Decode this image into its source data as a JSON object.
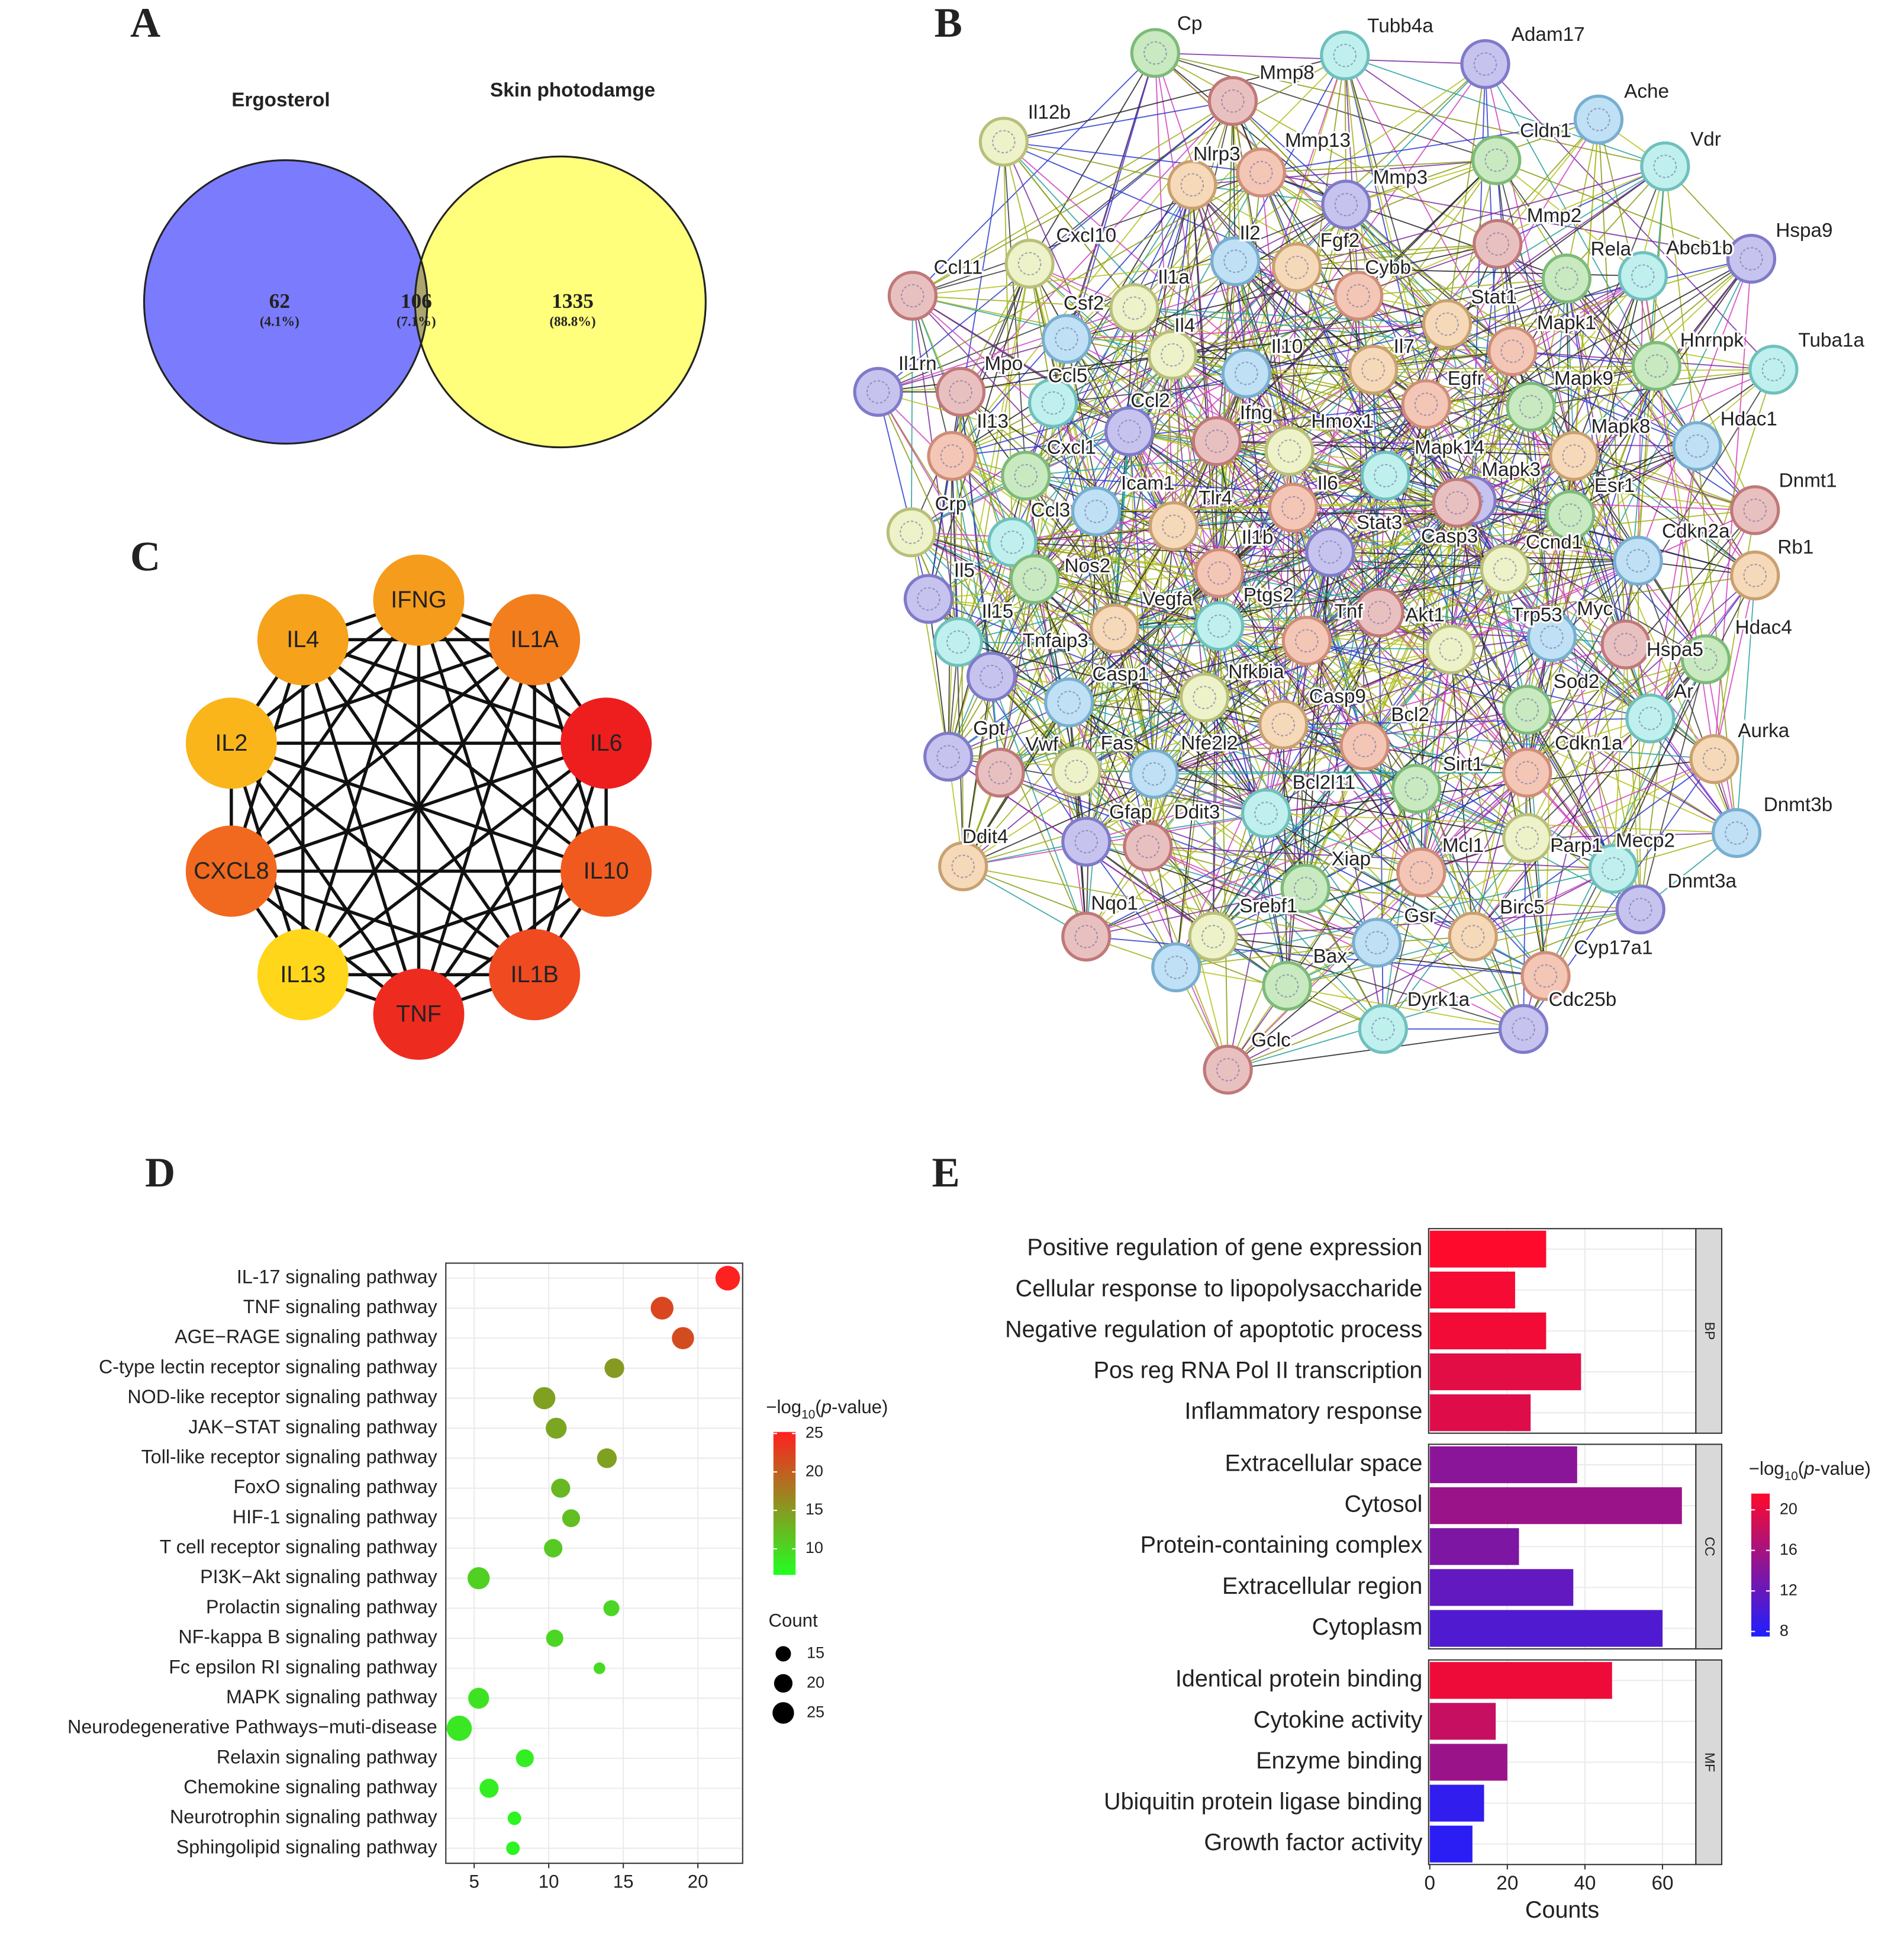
{
  "chart_data": [
    {
      "type": "venn",
      "panel": "A",
      "sets": [
        {
          "name": "Ergosterol",
          "color": "#7b7bfe",
          "label_color": "#2a2ae0"
        },
        {
          "name": "Skin photodamge",
          "color": "#ffff7c",
          "label_color": "#c4c40a"
        }
      ],
      "overlap_color": "#aba66e",
      "values": [
        62,
        106,
        1335
      ],
      "percent_labels": [
        "(4.1%)",
        "(7.1%)",
        "(88.8%)"
      ]
    },
    {
      "type": "network",
      "panel": "B",
      "nodes": [
        "Cp",
        "Tubb4a",
        "Adam17",
        "Mmp8",
        "Il12b",
        "Ache",
        "Nlrp3",
        "Mmp13",
        "Cldn1",
        "Vdr",
        "Mmp3",
        "Mmp2",
        "Cxcl10",
        "Il2",
        "Fgf2",
        "Cybb",
        "Rela",
        "Abcb1b",
        "Hspa9",
        "Ccl11",
        "Il1a",
        "Csf2",
        "Stat1",
        "Mapk1",
        "Hnrnpk",
        "Tuba1a",
        "Il1rn",
        "Mpo",
        "Il4",
        "Il10",
        "Il7",
        "Egfr",
        "Mapk9",
        "Ccl5",
        "Ccl2",
        "Ifng",
        "Hmox1",
        "Hdac1",
        "Mapk8",
        "Il13",
        "Cxcl1",
        "Mapk14",
        "Mapk3",
        "Dnmt1",
        "Crp",
        "Icam1",
        "Tlr4",
        "Il6",
        "Esr1",
        "Ccl3",
        "Stat3",
        "Casp3",
        "Ccnd1",
        "Cdkn2a",
        "Rb1",
        "Il1b",
        "Nos2",
        "Ptgs2",
        "Il5",
        "Akt1",
        "Trp53",
        "Myc",
        "Vegfa",
        "Tnf",
        "Hdac4",
        "Il15",
        "Tnfaip3",
        "Hspa5",
        "Nfkbia",
        "Casp1",
        "Casp9",
        "Bcl2",
        "Sod2",
        "Ar",
        "Gpt",
        "Vwf",
        "Fas",
        "Nfe2l2",
        "Aurka",
        "Cdkn1a",
        "Sirt1",
        "Bcl2l11",
        "Gfap",
        "Ddit3",
        "Parp1",
        "Dnmt3b",
        "Ddit4",
        "Mcl1",
        "Xiap",
        "Mecp2",
        "Dnmt3a",
        "Nqo1",
        "Srebf1",
        "Gsr",
        "Birc5",
        "Cyp17a1",
        "Bax",
        "Dyrk1a",
        "Cdc25b",
        "Gclc"
      ]
    },
    {
      "type": "network",
      "panel": "C",
      "nodes": [
        {
          "label": "IFNG",
          "color": "#f59c1c"
        },
        {
          "label": "IL1A",
          "color": "#f27e1d"
        },
        {
          "label": "IL6",
          "color": "#ee1e1e"
        },
        {
          "label": "IL10",
          "color": "#f05a1f"
        },
        {
          "label": "IL1B",
          "color": "#f04a21"
        },
        {
          "label": "TNF",
          "color": "#ee2b1f"
        },
        {
          "label": "IL13",
          "color": "#ffd61a"
        },
        {
          "label": "CXCL8",
          "color": "#f0691e"
        },
        {
          "label": "IL2",
          "color": "#f9b51a"
        },
        {
          "label": "IL4",
          "color": "#f6a21a"
        }
      ]
    },
    {
      "type": "dot",
      "panel": "D",
      "categories": [
        "IL-17 signaling pathway",
        "TNF signaling pathway",
        "AGE−RAGE signaling pathway",
        "C-type lectin receptor signaling pathway",
        "NOD-like receptor signaling pathway",
        "JAK−STAT signaling pathway",
        "Toll-like receptor signaling pathway",
        "FoxO signaling pathway",
        "HIF-1 signaling pathway",
        "T cell receptor signaling pathway",
        "PI3K−Akt signaling pathway",
        "Prolactin signaling pathway",
        "NF-kappa B signaling pathway",
        "Fc epsilon RI signaling pathway",
        "MAPK signaling pathway",
        "Neurodegenerative Pathways−muti-disease",
        "Relaxin signaling pathway",
        "Chemokine signaling pathway",
        "Neurotrophin signaling pathway",
        "Sphingolipid signaling pathway"
      ],
      "values": [
        22.0,
        17.6,
        19.0,
        14.4,
        9.7,
        10.5,
        13.9,
        10.8,
        11.5,
        10.3,
        5.3,
        14.2,
        10.4,
        13.4,
        5.3,
        4.0,
        8.4,
        6.0,
        7.7,
        7.6
      ],
      "counts": [
        30,
        27,
        26,
        22,
        26,
        24,
        22,
        21,
        19,
        20,
        26,
        16,
        18,
        9,
        24,
        31,
        19,
        21,
        12,
        12
      ],
      "neglog_p": [
        25,
        22,
        21.5,
        15,
        14.5,
        14,
        14.5,
        12.5,
        12,
        11,
        10.5,
        10,
        10,
        9.5,
        9,
        8.5,
        8,
        8,
        7.5,
        7.5
      ],
      "xlim": [
        3.1,
        23.0
      ],
      "xticks": [
        5,
        10,
        15,
        20
      ],
      "grid": true,
      "color_title": [
        "−log",
        "10",
        "(",
        "p",
        "-value)"
      ],
      "color_range": [
        "#22ff22",
        "#ff2020"
      ],
      "clim": [
        6.6,
        25.2
      ],
      "cticks": [
        10,
        15,
        20,
        25
      ],
      "size_title": "Count",
      "size_legend": [
        15,
        20,
        25
      ]
    },
    {
      "type": "bar",
      "panel": "E",
      "facets": [
        {
          "name": "BP",
          "categories": [
            "Positive regulation of gene expression",
            "Cellular response to lipopolysaccharide",
            "Negative regulation of apoptotic process",
            "Pos reg RNA Pol II transcription",
            "Inflammatory response"
          ],
          "values": [
            30,
            22,
            30,
            39,
            26
          ],
          "neglog_p": [
            21.5,
            21,
            20.8,
            19.8,
            19.5
          ]
        },
        {
          "name": "CC",
          "categories": [
            "Extracellular space",
            "Cytosol",
            "Protein-containing complex",
            "Extracellular region",
            "Cytoplasm"
          ],
          "values": [
            38,
            65,
            23,
            37,
            60
          ],
          "neglog_p": [
            14.3,
            15.3,
            13.5,
            11.7,
            10.6
          ]
        },
        {
          "name": "MF",
          "categories": [
            "Identical protein binding",
            "Cytokine activity",
            "Enzyme binding",
            "Ubiquitin protein ligase binding",
            "Growth factor activity"
          ],
          "values": [
            47,
            17,
            20,
            14,
            11
          ],
          "neglog_p": [
            20.6,
            18,
            15.3,
            8.6,
            8.2
          ]
        }
      ],
      "xlabel": "Counts",
      "xlim": [
        -0.3,
        68.6
      ],
      "xticks": [
        0,
        20,
        40,
        60
      ],
      "grid": true,
      "color_title": [
        "−log",
        "10",
        "(",
        "p",
        "-value)"
      ],
      "color_range": [
        "#1f1fff",
        "#ff0a2a"
      ],
      "clim": [
        7.5,
        21.6
      ],
      "cticks": [
        8,
        12,
        16,
        20
      ]
    }
  ]
}
